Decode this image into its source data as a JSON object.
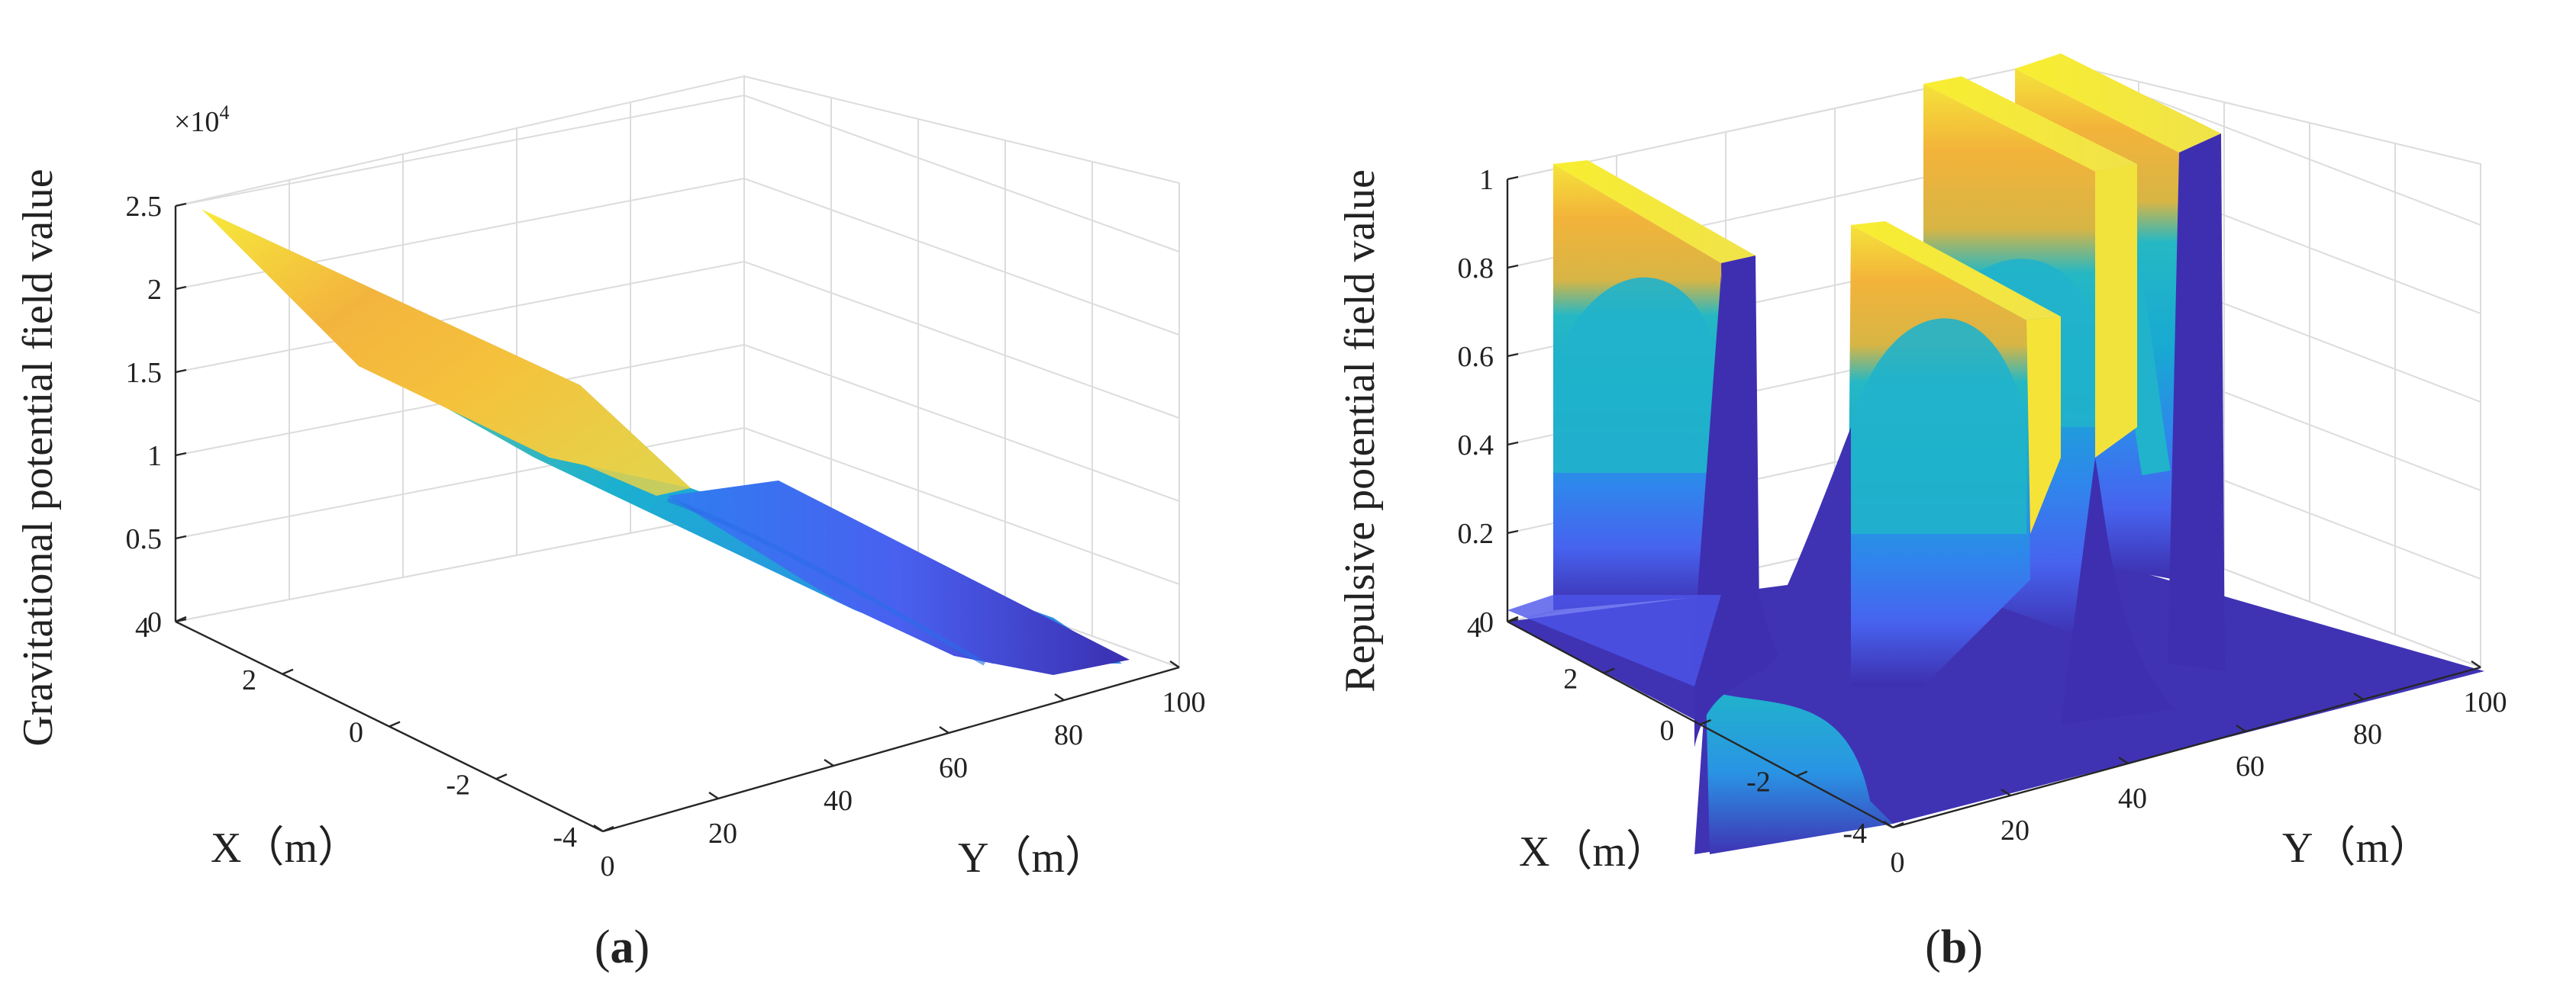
{
  "chart_data": [
    {
      "panel": "a",
      "type": "surface",
      "caption_open": "(",
      "caption_letter": "a",
      "caption_close": ")",
      "title": "",
      "zlabel": "Gravitational potential field value",
      "xlabel": "X（m）",
      "ylabel": "Y（m）",
      "z_multiplier": "×10",
      "z_multiplier_exp": "4",
      "z_ticks": [
        "0",
        "0.5",
        "1",
        "1.5",
        "2",
        "2.5"
      ],
      "x_ticks": [
        "4",
        "2",
        "0",
        "-2",
        "-4"
      ],
      "y_ticks": [
        "0",
        "20",
        "40",
        "60",
        "80",
        "100"
      ],
      "zlim": [
        0,
        25000
      ],
      "xlim": [
        -4,
        4
      ],
      "ylim": [
        0,
        100
      ],
      "colormap": "parula",
      "description_points": [
        {
          "x": 4,
          "y": 0,
          "z": 23500
        },
        {
          "x": -4,
          "y": 0,
          "z": 11800
        },
        {
          "x": 4,
          "y": 100,
          "z": 800
        },
        {
          "x": -4,
          "y": 100,
          "z": 0
        }
      ]
    },
    {
      "panel": "b",
      "type": "surface",
      "caption_open": "(",
      "caption_letter": "b",
      "caption_close": ")",
      "title": "",
      "zlabel": "Repulsive potential field value",
      "xlabel": "X（m）",
      "ylabel": "Y（m）",
      "z_ticks": [
        "0",
        "0.2",
        "0.4",
        "0.6",
        "0.8",
        "1"
      ],
      "x_ticks": [
        "4",
        "2",
        "0",
        "-2",
        "-4"
      ],
      "y_ticks": [
        "0",
        "20",
        "40",
        "60",
        "80",
        "100"
      ],
      "zlim": [
        0,
        1
      ],
      "xlim": [
        -4,
        4
      ],
      "ylim": [
        0,
        100
      ],
      "colormap": "parula",
      "obstacles": [
        {
          "x_range": [
            0.2,
            4
          ],
          "y_center": 10,
          "peak": 1
        },
        {
          "x_range": [
            -4,
            0.5
          ],
          "y_center": 38,
          "peak": 1
        },
        {
          "x_range": [
            0.5,
            4
          ],
          "y_center": 52,
          "peak": 1
        },
        {
          "x_range": [
            0,
            4
          ],
          "y_center": 62,
          "peak": 1
        }
      ]
    }
  ],
  "colors": {
    "parula_low": "#3e26a8",
    "parula_mid": "#1fb4c8",
    "parula_high": "#fbdc2a",
    "grid": "#dcdcdc",
    "axis": "#262626"
  }
}
